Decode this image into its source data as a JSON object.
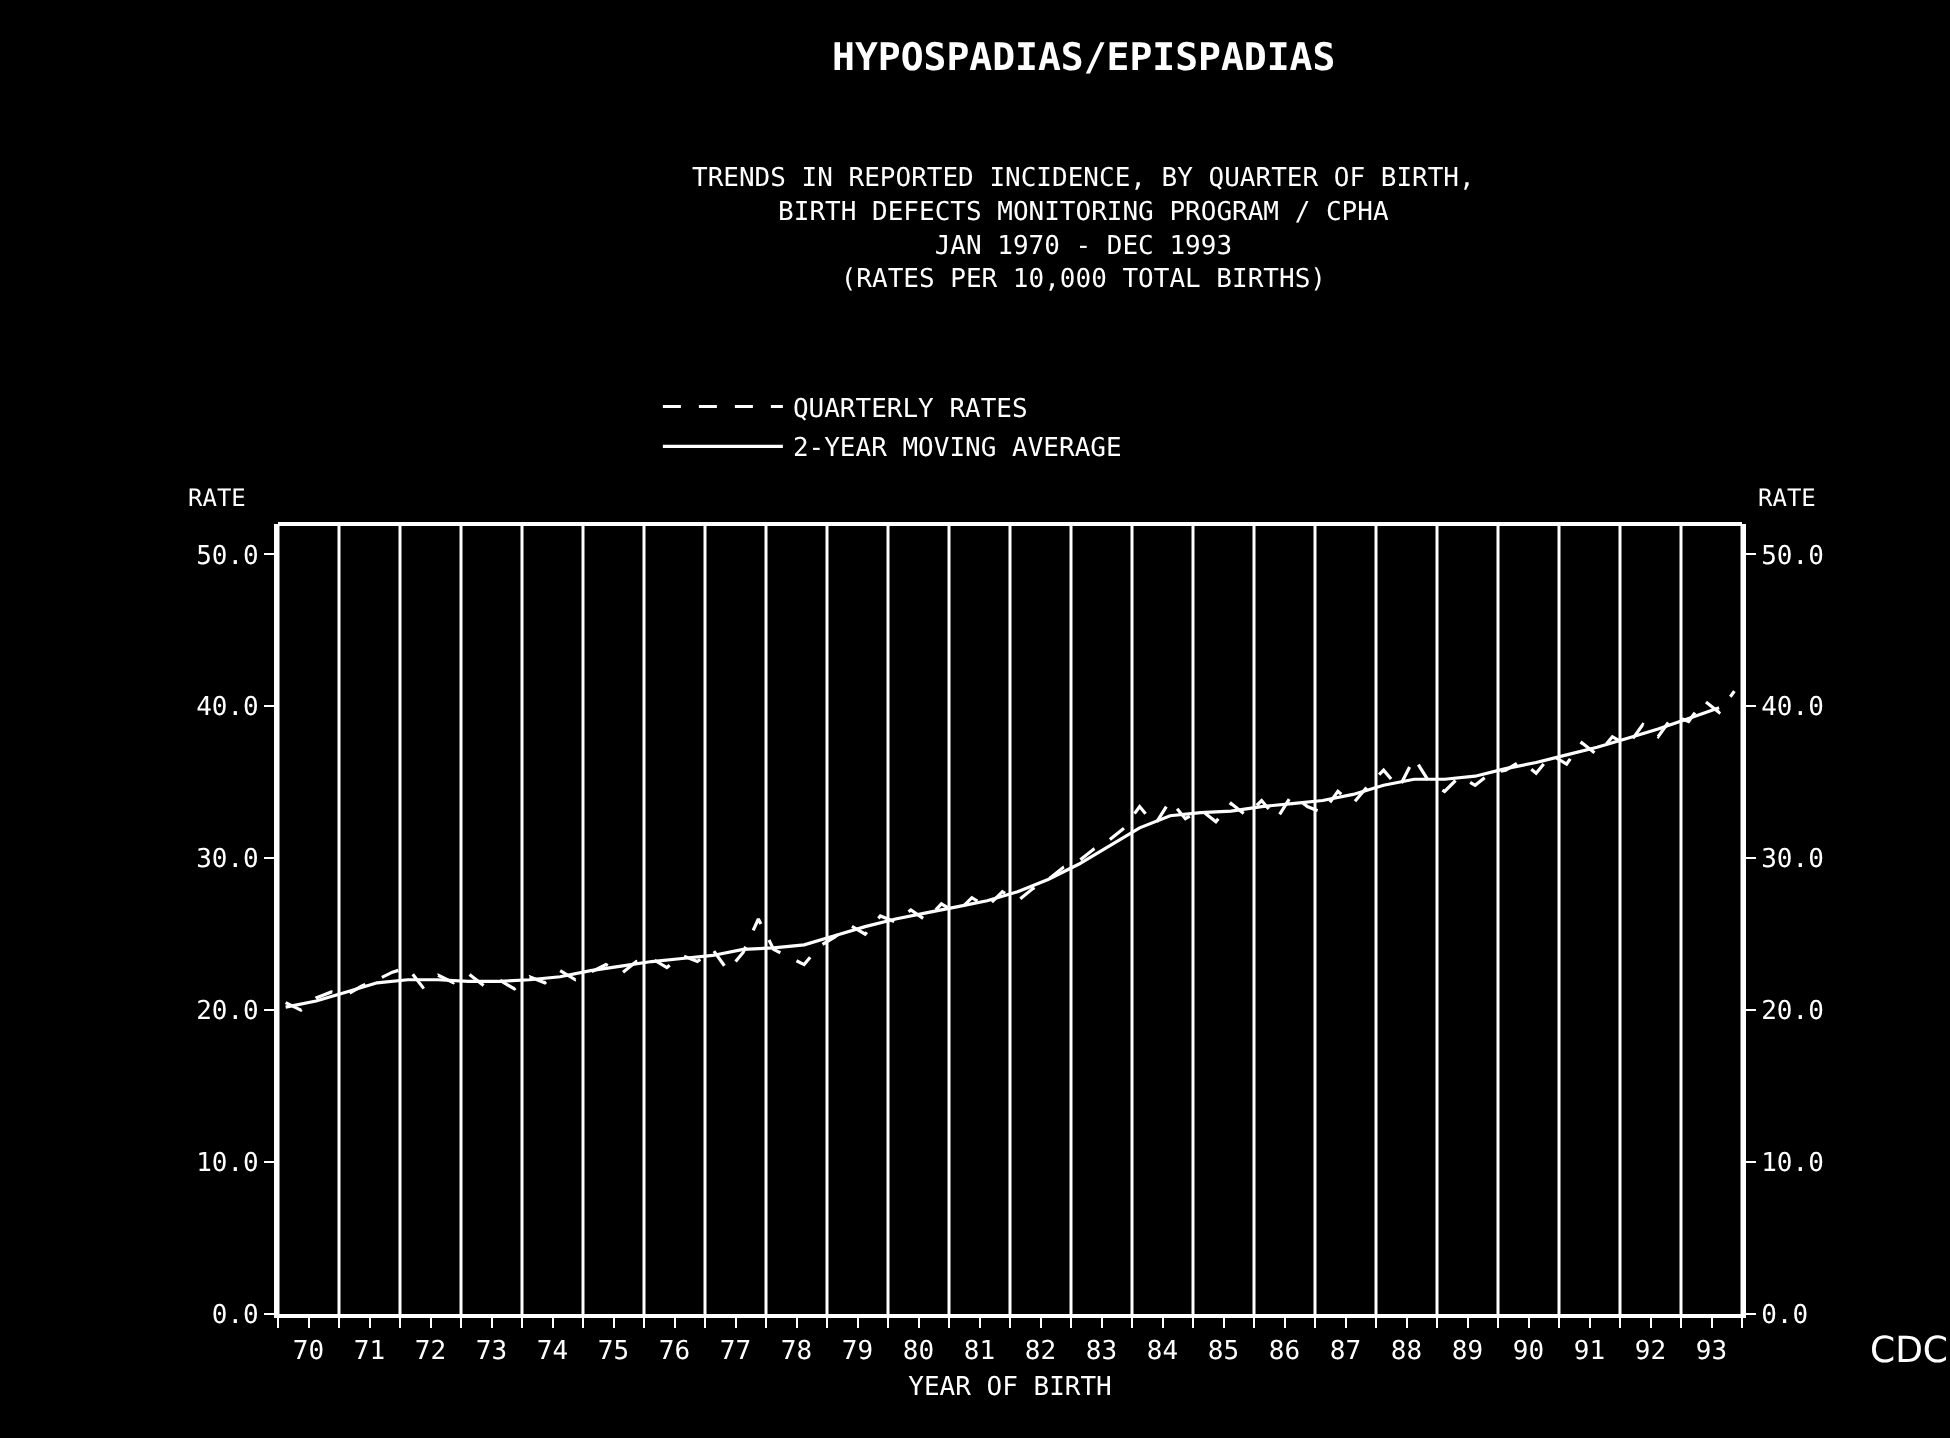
{
  "chart_data": {
    "type": "line",
    "title": "HYPOSPADIAS/EPISPADIAS",
    "subtitle": "TRENDS IN REPORTED INCIDENCE, BY QUARTER OF BIRTH,\nBIRTH DEFECTS MONITORING PROGRAM / CPHA\nJAN 1970 - DEC 1993\n(RATES PER 10,000 TOTAL BIRTHS)",
    "xlabel": "YEAR OF BIRTH",
    "ylabel": "RATE",
    "y2label": "RATE",
    "annotations": [
      "CDC"
    ],
    "series": [
      {
        "name": "QUARTERLY RATES",
        "color": "#ffffff",
        "line_style": "dashed",
        "x": [
          69.625,
          69.875,
          70.125,
          70.375,
          70.625,
          70.875,
          71.125,
          71.375,
          71.625,
          71.875,
          72.125,
          72.375,
          72.625,
          72.875,
          73.125,
          73.375,
          73.625,
          73.875,
          74.125,
          74.375,
          74.625,
          74.875,
          75.125,
          75.375,
          75.625,
          75.875,
          76.125,
          76.375,
          76.625,
          76.875,
          77.125,
          77.375,
          77.625,
          77.875,
          78.125,
          78.375,
          78.625,
          78.875,
          79.125,
          79.375,
          79.625,
          79.875,
          80.125,
          80.375,
          80.625,
          80.875,
          81.125,
          81.375,
          81.625,
          81.875,
          82.125,
          82.375,
          82.625,
          82.875,
          83.125,
          83.375,
          83.625,
          83.875,
          84.125,
          84.375,
          84.625,
          84.875,
          85.125,
          85.375,
          85.625,
          85.875,
          86.125,
          86.375,
          86.625,
          86.875,
          87.125,
          87.375,
          87.625,
          87.875,
          88.125,
          88.375,
          88.625,
          88.875,
          89.125,
          89.375,
          89.625,
          89.875,
          90.125,
          90.375,
          90.625,
          90.875,
          91.125,
          91.375,
          91.625,
          91.875,
          92.125,
          92.375,
          92.625,
          92.875,
          93.125,
          93.375
        ],
        "values": [
          20.5,
          20.0,
          20.8,
          21.2,
          21.0,
          21.6,
          22.0,
          22.5,
          22.8,
          21.5,
          22.3,
          21.8,
          22.4,
          21.6,
          22.0,
          21.4,
          22.2,
          21.8,
          22.6,
          22.0,
          22.5,
          23.0,
          22.4,
          23.2,
          23.4,
          22.8,
          23.6,
          23.2,
          24.0,
          22.6,
          23.8,
          26.0,
          24.0,
          23.5,
          23.0,
          24.2,
          24.8,
          25.6,
          25.0,
          26.2,
          25.8,
          26.6,
          25.9,
          27.0,
          26.4,
          27.4,
          26.8,
          27.8,
          27.2,
          28.0,
          28.6,
          29.4,
          29.8,
          30.6,
          31.2,
          32.0,
          33.4,
          32.2,
          33.8,
          32.6,
          33.2,
          32.4,
          33.6,
          32.8,
          33.8,
          32.6,
          34.2,
          33.4,
          33.0,
          34.4,
          33.6,
          34.8,
          35.8,
          34.6,
          36.6,
          35.0,
          34.4,
          35.4,
          34.8,
          35.6,
          35.8,
          36.4,
          35.6,
          36.8,
          36.2,
          37.6,
          36.8,
          38.0,
          37.4,
          38.8,
          38.0,
          39.4,
          39.0,
          40.4,
          39.6,
          41.0
        ]
      },
      {
        "name": "2-YEAR MOVING AVERAGE",
        "color": "#ffffff",
        "line_style": "solid",
        "x": [
          69.625,
          70.125,
          70.625,
          71.125,
          71.625,
          72.125,
          72.625,
          73.125,
          73.625,
          74.125,
          74.625,
          75.125,
          75.625,
          76.125,
          76.625,
          77.125,
          77.625,
          78.125,
          78.625,
          79.125,
          79.625,
          80.125,
          80.625,
          81.125,
          81.625,
          82.125,
          82.625,
          83.125,
          83.625,
          84.125,
          84.625,
          85.125,
          85.625,
          86.125,
          86.625,
          87.125,
          87.625,
          88.125,
          88.625,
          89.125,
          89.625,
          90.125,
          90.625,
          91.125,
          91.625,
          92.125,
          92.625,
          93.125
        ],
        "values": [
          20.2,
          20.6,
          21.2,
          21.8,
          22.0,
          22.0,
          21.9,
          21.9,
          22.0,
          22.2,
          22.6,
          22.9,
          23.2,
          23.4,
          23.6,
          24.0,
          24.1,
          24.3,
          24.9,
          25.5,
          26.0,
          26.4,
          26.8,
          27.2,
          27.8,
          28.6,
          29.6,
          30.8,
          32.0,
          32.8,
          33.0,
          33.1,
          33.4,
          33.6,
          33.8,
          34.2,
          34.8,
          35.2,
          35.2,
          35.4,
          35.9,
          36.3,
          36.8,
          37.3,
          37.9,
          38.5,
          39.2,
          39.9
        ]
      }
    ],
    "xlim": [
      69.5,
      93.5
    ],
    "xticks": [
      {
        "value": 69.5,
        "label": null
      },
      70,
      {
        "value": 70.5,
        "label": null
      },
      71,
      {
        "value": 71.5,
        "label": null
      },
      72,
      {
        "value": 72.5,
        "label": null
      },
      73,
      {
        "value": 73.5,
        "label": null
      },
      74,
      {
        "value": 74.5,
        "label": null
      },
      75,
      {
        "value": 75.5,
        "label": null
      },
      76,
      {
        "value": 76.5,
        "label": null
      },
      77,
      {
        "value": 77.5,
        "label": null
      },
      78,
      {
        "value": 78.5,
        "label": null
      },
      79,
      {
        "value": 79.5,
        "label": null
      },
      80,
      {
        "value": 80.5,
        "label": null
      },
      81,
      {
        "value": 81.5,
        "label": null
      },
      82,
      {
        "value": 82.5,
        "label": null
      },
      83,
      {
        "value": 83.5,
        "label": null
      },
      84,
      {
        "value": 84.5,
        "label": null
      },
      85,
      {
        "value": 85.5,
        "label": null
      },
      86,
      {
        "value": 86.5,
        "label": null
      },
      87,
      {
        "value": 87.5,
        "label": null
      },
      88,
      {
        "value": 88.5,
        "label": null
      },
      89,
      {
        "value": 89.5,
        "label": null
      },
      90,
      {
        "value": 90.5,
        "label": null
      },
      91,
      {
        "value": 91.5,
        "label": null
      },
      92,
      {
        "value": 92.5,
        "label": null
      },
      93,
      {
        "value": 93.5,
        "label": null
      }
    ],
    "ylim": [
      0,
      52
    ],
    "yticks": [
      {
        "value": 0,
        "label": "0.0"
      },
      {
        "value": 10,
        "label": "10.0"
      },
      {
        "value": 20,
        "label": "20.0"
      },
      {
        "value": 30,
        "label": "30.0"
      },
      {
        "value": 40,
        "label": "40.0"
      },
      {
        "value": 50,
        "label": "50.0"
      }
    ],
    "y2lim": [
      0,
      52
    ],
    "y2ticks": [
      {
        "value": 0,
        "label": "0.0"
      },
      {
        "value": 10,
        "label": "10.0"
      },
      {
        "value": 20,
        "label": "20.0"
      },
      {
        "value": 30,
        "label": "30.0"
      },
      {
        "value": 40,
        "label": "40.0"
      },
      {
        "value": 50,
        "label": "50.0"
      }
    ],
    "grid": "x",
    "legend": "top",
    "marker": "none"
  }
}
